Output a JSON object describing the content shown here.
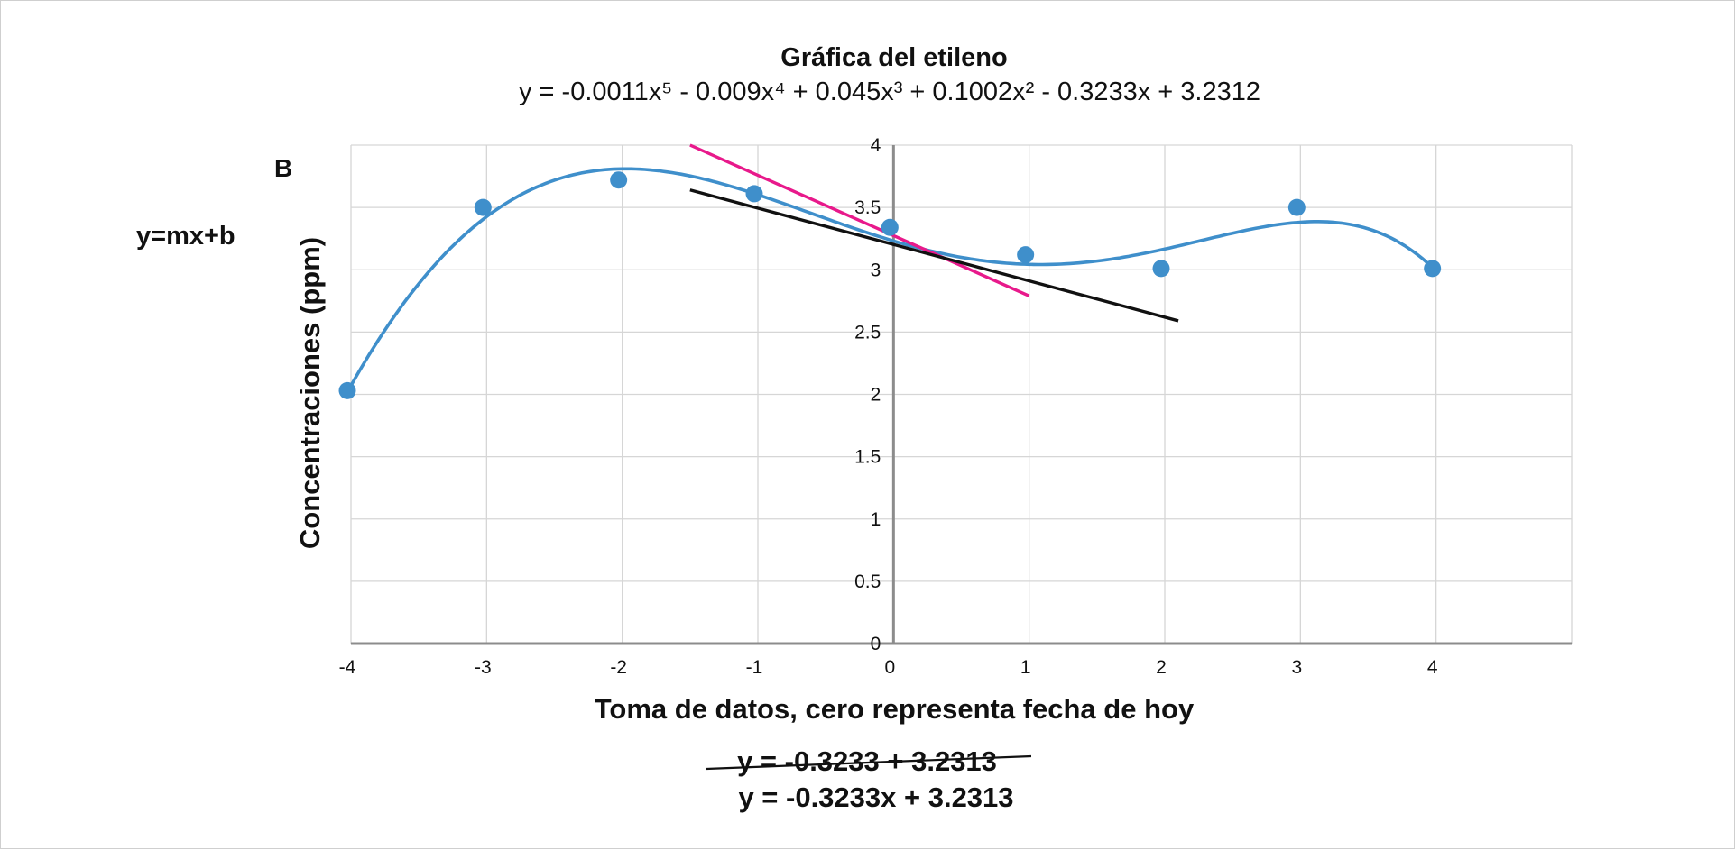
{
  "chart_data": {
    "type": "scatter",
    "title": "Gráfica del etileno",
    "subtitle": "y = -0.0011x⁵  - 0.009x⁴ + 0.045x³  +  0.1002x²  -  0.3233x  +  3.2312",
    "panel_label": "B",
    "side_note": "y=mx+b",
    "xlabel": "Toma de datos, cero representa fecha de hoy",
    "ylabel": "Concentraciones (ppm)",
    "xlim": [
      -4,
      5
    ],
    "ylim": [
      0,
      4
    ],
    "x_ticks": [
      -4,
      -3,
      -2,
      -1,
      0,
      1,
      2,
      3,
      4
    ],
    "y_ticks": [
      0,
      0.5,
      1,
      1.5,
      2,
      2.5,
      3,
      3.5,
      4
    ],
    "grid": true,
    "series": [
      {
        "kind": "points",
        "color": "#3f8fcb",
        "x": [
          -4,
          -3,
          -2,
          -1,
          0,
          1,
          2,
          3,
          4
        ],
        "y": [
          2.03,
          3.5,
          3.72,
          3.61,
          3.34,
          3.12,
          3.01,
          3.5,
          3.01
        ]
      },
      {
        "kind": "polynomial-trend",
        "color": "#3f8fcb",
        "coefficients": [
          3.2312,
          -0.3233,
          0.1002,
          0.045,
          -0.009,
          -0.0011
        ],
        "x_range": [
          -4,
          4
        ]
      },
      {
        "kind": "line",
        "color": "#e8198b",
        "x": [
          -1.5,
          1
        ],
        "y": [
          4.0,
          2.79
        ]
      },
      {
        "kind": "line",
        "color": "#111111",
        "x": [
          -1.5,
          2.1
        ],
        "y": [
          3.64,
          2.59
        ]
      }
    ],
    "notes": {
      "struck_equation": "y = -0.3233 + 3.2313",
      "equation": "y = -0.3233x + 3.2313"
    }
  }
}
